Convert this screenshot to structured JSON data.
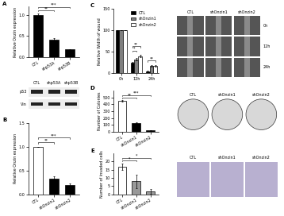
{
  "chart_data": [
    {
      "type": "bar",
      "title": "A",
      "categories": [
        "CTL",
        "shp53A",
        "shp53B"
      ],
      "values": [
        1.0,
        0.42,
        0.18
      ],
      "errors": [
        0.03,
        0.03,
        0.01
      ],
      "colors": [
        "#000000",
        "#000000",
        "#000000"
      ],
      "y_label": "Relative Onzin expression",
      "ylim": [
        0,
        1.2
      ],
      "yticks": [
        {
          "value": 0,
          "label": "0.0"
        },
        {
          "value": 0.5,
          "label": "0.5"
        },
        {
          "value": 1,
          "label": "1.0"
        }
      ],
      "annotations": [
        {
          "text": "**",
          "categories": [
            "CTL",
            "shp53A"
          ]
        },
        {
          "text": "***",
          "categories": [
            "CTL",
            "shp53B"
          ]
        }
      ]
    },
    {
      "type": "bar",
      "title": "B",
      "categories": [
        "CTL",
        "shOnzin1",
        "shOnzin2"
      ],
      "values": [
        1.0,
        0.33,
        0.2
      ],
      "errors": [
        0.0,
        0.05,
        0.03
      ],
      "colors": [
        "#ffffff",
        "#000000",
        "#000000"
      ],
      "y_label": "Relative Onzin expression",
      "ylim": [
        0,
        1.5
      ],
      "yticks": [
        {
          "value": 0,
          "label": "0.0"
        },
        {
          "value": 0.5,
          "label": "0.5"
        },
        {
          "value": 1,
          "label": "1.0"
        },
        {
          "value": 1.5,
          "label": "1.5"
        }
      ],
      "annotations": [
        {
          "text": "**",
          "categories": [
            "CTL",
            "shOnzin1"
          ]
        },
        {
          "text": "***",
          "categories": [
            "CTL",
            "shOnzin2"
          ]
        }
      ]
    },
    {
      "type": "grouped_bar",
      "title": "C",
      "categories": [
        "0h",
        "12h",
        "24h"
      ],
      "series": [
        {
          "name": "CTL",
          "color": "#000000",
          "values": [
            100,
            25,
            5
          ],
          "errors": [
            0,
            2,
            1
          ]
        },
        {
          "name": "shOnzin1",
          "color": "#808080",
          "values": [
            100,
            33,
            18
          ],
          "errors": [
            0,
            3,
            2
          ]
        },
        {
          "name": "shOnzin2",
          "color": "#ffffff",
          "values": [
            100,
            40,
            18
          ],
          "errors": [
            0,
            3,
            2
          ]
        }
      ],
      "y_label": "Relative Width of wound",
      "ylim": [
        0,
        150
      ],
      "yticks": [
        0,
        50,
        100,
        150
      ],
      "legend": "upper right",
      "annotations": [
        {
          "text": "*",
          "category": "12h",
          "series": [
            "CTL",
            "shOnzin1"
          ]
        },
        {
          "text": "**",
          "category": "12h",
          "series": [
            "CTL",
            "shOnzin2"
          ]
        },
        {
          "text": "**",
          "category": "24h",
          "series": [
            "CTL",
            "shOnzin2"
          ]
        }
      ]
    },
    {
      "type": "bar",
      "title": "D",
      "categories": [
        "CTL",
        "shOnzin1",
        "shOnzin2"
      ],
      "values": [
        450,
        130,
        20
      ],
      "errors": [
        10,
        8,
        3
      ],
      "colors": [
        "#ffffff",
        "#000000",
        "#000000"
      ],
      "y_label": "Number of Colonies",
      "ylim": [
        0,
        600
      ],
      "yticks": [
        0,
        100,
        200,
        300,
        400,
        500
      ],
      "annotations": [
        {
          "text": "**",
          "categories": [
            "CTL",
            "shOnzin1"
          ]
        },
        {
          "text": "***",
          "categories": [
            "CTL",
            "shOnzin2"
          ]
        }
      ]
    },
    {
      "type": "bar",
      "title": "E",
      "categories": [
        "CTL",
        "shOnzin1",
        "shOnzin2"
      ],
      "values": [
        17,
        8,
        2
      ],
      "errors": [
        2,
        4,
        1.5
      ],
      "colors": [
        "#ffffff",
        "#999999",
        "#999999"
      ],
      "y_label": "Number of invaded cells",
      "ylim": [
        0,
        25
      ],
      "yticks": [
        0,
        5,
        10,
        15,
        20
      ],
      "annotations": [
        {
          "text": "*",
          "categories": [
            "CTL",
            "shOnzin1"
          ]
        },
        {
          "text": "*",
          "categories": [
            "CTL",
            "shOnzin2"
          ]
        }
      ]
    }
  ],
  "western_blot": {
    "columns": [
      "CTL",
      "shp53A",
      "shp53B"
    ],
    "rows": [
      "p53",
      "Vin"
    ]
  },
  "image_panels": {
    "wound": {
      "columns": [
        "CTL",
        "shOnzin1",
        "shOnzin2"
      ],
      "rows": [
        "0h",
        "12h",
        "24h"
      ]
    },
    "colony": {
      "columns": [
        "CTL",
        "shOnzin1",
        "shOnzin2"
      ]
    },
    "invasion": {
      "columns": [
        "CTL",
        "shOnzin1",
        "shOnzin2"
      ]
    }
  }
}
